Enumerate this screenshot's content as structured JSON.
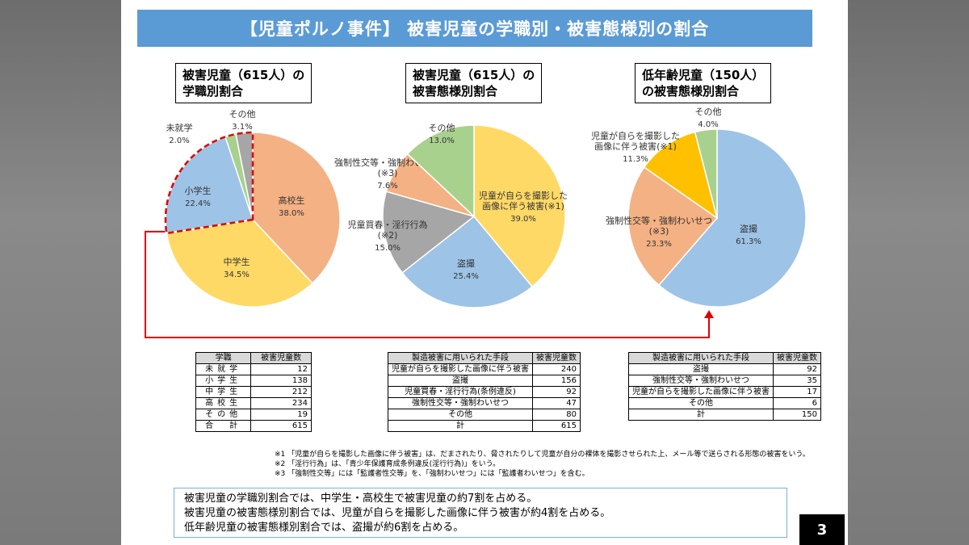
{
  "title": "【児童ポルノ事件】 被害児童の学職別・被害態様別の割合",
  "page_number": "3",
  "colors": {
    "title_bg": "#5b9bd5",
    "orange": "#f4b183",
    "yellow": "#ffd966",
    "blue": "#9dc3e6",
    "green": "#a9d18e",
    "gray": "#a6a6a6",
    "dark_gray": "#999999",
    "gold": "#ffc000",
    "highlight_red": "#e00000"
  },
  "chart_data": [
    {
      "type": "pie",
      "title": "被害児童（615人）の\n学職別割合",
      "slices": [
        {
          "label": "高校生",
          "value": 38.0,
          "display": "38.0%",
          "color": "#f4b183"
        },
        {
          "label": "中学生",
          "value": 34.5,
          "display": "34.5%",
          "color": "#ffd966"
        },
        {
          "label": "小学生",
          "value": 22.4,
          "display": "22.4%",
          "color": "#9dc3e6"
        },
        {
          "label": "未就学",
          "value": 2.0,
          "display": "2.0%",
          "color": "#a9d18e"
        },
        {
          "label": "その他",
          "value": 3.1,
          "display": "3.1%",
          "color": "#a6a6a6"
        }
      ]
    },
    {
      "type": "pie",
      "title": "被害児童（615人）の\n被害態様別割合",
      "slices": [
        {
          "label": "児童が自らを撮影した\n画像に伴う被害(※1)",
          "value": 39.0,
          "display": "39.0%",
          "color": "#ffd966"
        },
        {
          "label": "盗撮",
          "value": 25.4,
          "display": "25.4%",
          "color": "#9dc3e6"
        },
        {
          "label": "児童買春・淫行行為\n(※2)",
          "value": 15.0,
          "display": "15.0%",
          "color": "#a6a6a6"
        },
        {
          "label": "強制性交等・強制わいせつ\n(※3)",
          "value": 7.6,
          "display": "7.6%",
          "color": "#f4b183"
        },
        {
          "label": "その他",
          "value": 13.0,
          "display": "13.0%",
          "color": "#a9d18e"
        }
      ]
    },
    {
      "type": "pie",
      "title": "低年齢児童（150人）\nの被害態様別割合",
      "slices": [
        {
          "label": "盗撮",
          "value": 61.3,
          "display": "61.3%",
          "color": "#9dc3e6"
        },
        {
          "label": "強制性交等・強制わいせつ\n(※3)",
          "value": 23.3,
          "display": "23.3%",
          "color": "#f4b183"
        },
        {
          "label": "児童が自らを撮影した\n画像に伴う被害(※1)",
          "value": 11.3,
          "display": "11.3%",
          "color": "#ffc000"
        },
        {
          "label": "その他",
          "value": 4.0,
          "display": "4.0%",
          "color": "#a9d18e"
        }
      ]
    }
  ],
  "tables": [
    {
      "headers": [
        "学職",
        "被害児童数"
      ],
      "rows": [
        [
          "未就学",
          "12"
        ],
        [
          "小学生",
          "138"
        ],
        [
          "中学生",
          "212"
        ],
        [
          "高校生",
          "234"
        ],
        [
          "その他",
          "19"
        ],
        [
          "合　計",
          "615"
        ]
      ]
    },
    {
      "headers": [
        "製造被害に用いられた手段",
        "被害児童数"
      ],
      "rows": [
        [
          "児童が自らを撮影した画像に伴う被害",
          "240"
        ],
        [
          "盗撮",
          "156"
        ],
        [
          "児童買春・淫行行為(条例違反)",
          "92"
        ],
        [
          "強制性交等・強制わいせつ",
          "47"
        ],
        [
          "その他",
          "80"
        ],
        [
          "計",
          "615"
        ]
      ]
    },
    {
      "headers": [
        "製造被害に用いられた手段",
        "被害児童数"
      ],
      "rows": [
        [
          "盗撮",
          "92"
        ],
        [
          "強制性交等・強制わいせつ",
          "35"
        ],
        [
          "児童が自らを撮影した画像に伴う被害",
          "17"
        ],
        [
          "その他",
          "6"
        ],
        [
          "計",
          "150"
        ]
      ]
    }
  ],
  "notes": [
    "※1 「児童が自らを撮影した画像に伴う被害」は、だまされたり、脅されたりして児童が自分の裸体を撮影させられた上、メール等で送らされる形態の被害をいう。",
    "※2 「淫行行為」は、「青少年保護育成条例違反(淫行行為)」をいう。",
    "※3 「強制性交等」には「監護者性交等」を、「強制わいせつ」には「監護者わいせつ」を含む。"
  ],
  "summary": [
    "被害児童の学職別割合では、中学生・高校生で被害児童の約7割を占める。",
    "被害児童の被害態様別割合では、児童が自らを撮影した画像に伴う被害が約4割を占める。",
    "低年齢児童の被害態様別割合では、盗撮が約6割を占める。"
  ]
}
